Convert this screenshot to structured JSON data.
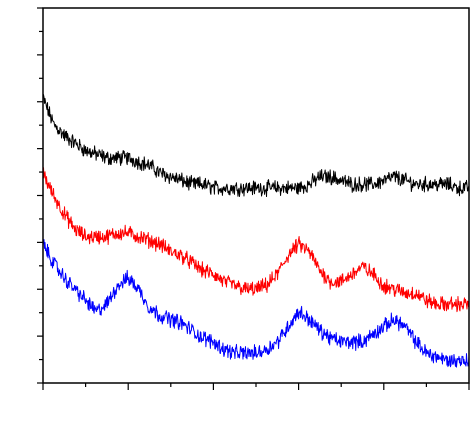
{
  "chart_data": {
    "type": "line",
    "title": "",
    "xlabel": "",
    "ylabel": "",
    "x_tick_labels": [],
    "y_tick_labels": [],
    "xlim": [
      0,
      100
    ],
    "ylim": [
      0,
      100
    ],
    "grid": false,
    "legend": "none",
    "series": [
      {
        "color": "#000000",
        "x": [
          0,
          2.5,
          5,
          7.5,
          10,
          12.5,
          15,
          17.5,
          20,
          22.5,
          25,
          27.5,
          30,
          32.5,
          35,
          37.5,
          40,
          42.5,
          45,
          47.5,
          50,
          52.5,
          55,
          57.5,
          60,
          62.5,
          65,
          67.5,
          70,
          72.5,
          75,
          77.5,
          80,
          82.5,
          85,
          87.5,
          90,
          92.5,
          95,
          97.5,
          100
        ],
        "values": [
          76,
          69,
          66,
          64,
          62,
          61,
          60,
          60,
          60,
          59,
          58,
          56,
          55,
          54,
          53,
          53,
          52,
          52,
          52,
          52,
          52,
          52,
          52,
          52,
          52,
          53,
          55,
          55,
          54,
          53,
          53,
          53,
          54,
          55,
          54,
          53,
          53,
          53,
          53,
          52,
          52
        ]
      },
      {
        "color": "#ff0000",
        "x": [
          0,
          2.5,
          5,
          7.5,
          10,
          12.5,
          15,
          17.5,
          20,
          22.5,
          25,
          27.5,
          30,
          32.5,
          35,
          37.5,
          40,
          42.5,
          45,
          47.5,
          50,
          52.5,
          55,
          57.5,
          60,
          62.5,
          65,
          67.5,
          70,
          72.5,
          75,
          77.5,
          80,
          82.5,
          85,
          87.5,
          90,
          92.5,
          95,
          97.5,
          100
        ],
        "values": [
          56,
          50,
          45,
          41,
          39,
          39,
          39,
          40,
          40,
          39,
          38,
          37,
          35,
          34,
          32,
          30,
          29,
          27,
          26,
          25,
          25,
          26,
          29,
          34,
          37,
          35,
          30,
          27,
          27,
          29,
          31,
          29,
          26,
          25,
          24,
          24,
          22,
          21,
          21,
          21,
          21
        ]
      },
      {
        "color": "#0000ff",
        "x": [
          0,
          2.5,
          5,
          7.5,
          10,
          12.5,
          15,
          17.5,
          20,
          22.5,
          25,
          27.5,
          30,
          32.5,
          35,
          37.5,
          40,
          42.5,
          45,
          47.5,
          50,
          52.5,
          55,
          57.5,
          60,
          62.5,
          65,
          67.5,
          70,
          72.5,
          75,
          77.5,
          80,
          82.5,
          85,
          87.5,
          90,
          92.5,
          95,
          97.5,
          100
        ],
        "values": [
          37,
          32,
          28,
          25,
          22,
          19,
          21,
          26,
          28,
          25,
          20,
          18,
          17,
          16,
          14,
          12,
          11,
          9,
          8,
          8,
          8,
          9,
          11,
          15,
          19,
          17,
          14,
          12,
          11,
          11,
          11,
          13,
          15,
          17,
          15,
          11,
          8,
          7,
          6,
          6,
          6
        ]
      }
    ]
  }
}
